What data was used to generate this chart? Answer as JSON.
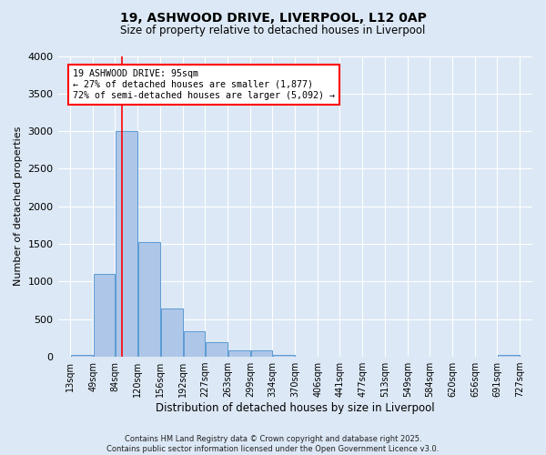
{
  "title_line1": "19, ASHWOOD DRIVE, LIVERPOOL, L12 0AP",
  "title_line2": "Size of property relative to detached houses in Liverpool",
  "xlabel": "Distribution of detached houses by size in Liverpool",
  "ylabel": "Number of detached properties",
  "bin_labels": [
    "13sqm",
    "49sqm",
    "84sqm",
    "120sqm",
    "156sqm",
    "192sqm",
    "227sqm",
    "263sqm",
    "299sqm",
    "334sqm",
    "370sqm",
    "406sqm",
    "441sqm",
    "477sqm",
    "513sqm",
    "549sqm",
    "584sqm",
    "620sqm",
    "656sqm",
    "691sqm",
    "727sqm"
  ],
  "bin_edges": [
    13,
    49,
    84,
    120,
    156,
    192,
    227,
    263,
    299,
    334,
    370,
    406,
    441,
    477,
    513,
    549,
    584,
    620,
    656,
    691,
    727
  ],
  "bar_values": [
    30,
    1100,
    3000,
    1520,
    640,
    340,
    195,
    90,
    80,
    30,
    0,
    0,
    0,
    0,
    0,
    0,
    0,
    0,
    0,
    30
  ],
  "bar_color": "#aec6e8",
  "bar_edge_color": "#5b9bd5",
  "vline_x": 95,
  "vline_color": "red",
  "annotation_text": "19 ASHWOOD DRIVE: 95sqm\n← 27% of detached houses are smaller (1,877)\n72% of semi-detached houses are larger (5,092) →",
  "annotation_box_color": "white",
  "annotation_box_edge_color": "red",
  "ylim": [
    0,
    4000
  ],
  "yticks": [
    0,
    500,
    1000,
    1500,
    2000,
    2500,
    3000,
    3500,
    4000
  ],
  "bg_color": "#dce8f5",
  "grid_color": "white",
  "footnote": "Contains HM Land Registry data © Crown copyright and database right 2025.\nContains public sector information licensed under the Open Government Licence v3.0."
}
